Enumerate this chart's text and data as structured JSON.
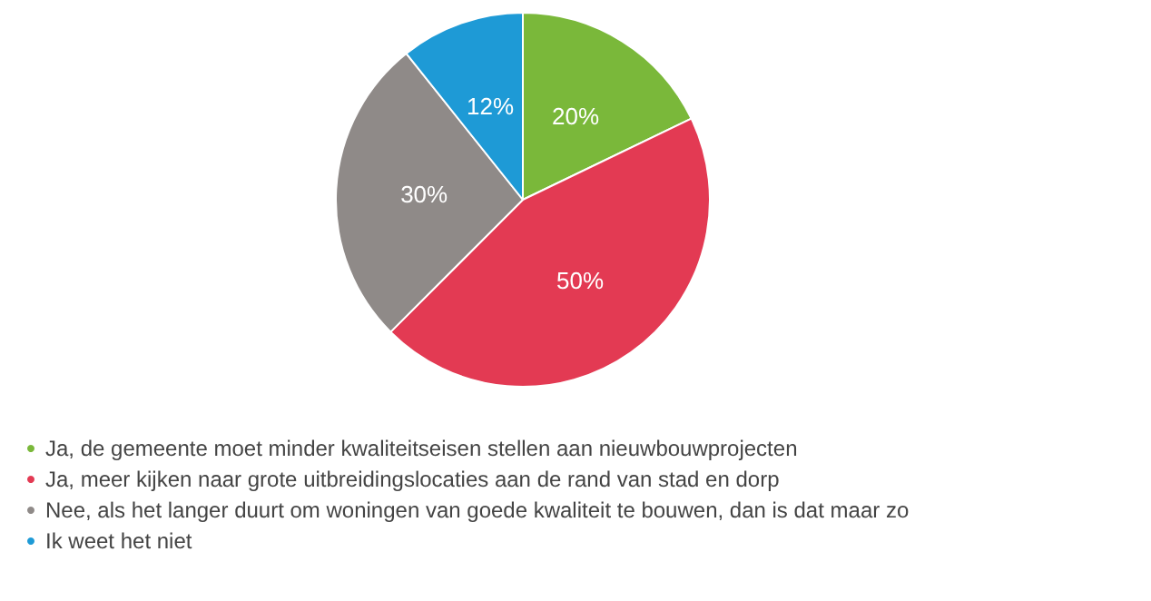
{
  "chart_data": {
    "type": "pie",
    "categories": [
      "Ja, de gemeente moet minder kwaliteitseisen stellen aan nieuwbouwprojecten",
      "Ja, meer kijken naar grote uitbreidingslocaties aan de rand van stad en dorp",
      "Nee, als het langer duurt om woningen van goede kwaliteit te bouwen, dan is dat maar zo",
      "Ik weet het niet"
    ],
    "values": [
      20,
      50,
      30,
      12
    ],
    "colors": [
      "#7ab83a",
      "#e33a53",
      "#8f8a88",
      "#1e9ad6"
    ],
    "value_labels": [
      "20%",
      "50%",
      "30%",
      "12%"
    ],
    "legend": "bottom left"
  }
}
